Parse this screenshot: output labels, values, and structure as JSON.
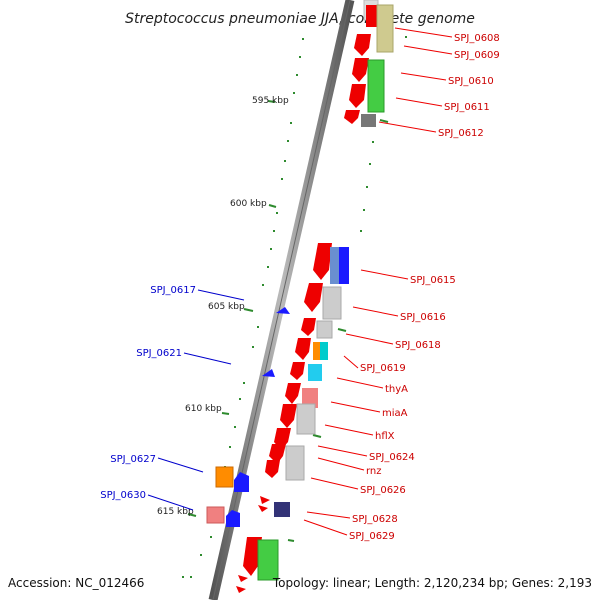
{
  "title": "Streptococcus pneumoniae JJA, complete genome",
  "accession": "Accession: NC_012466",
  "summary": "Topology: linear; Length: 2,120,234 bp; Genes: 2,193",
  "ticks": [
    "595 kbp",
    "600 kbp",
    "605 kbp",
    "610 kbp",
    "615 kbp"
  ],
  "right_genes": [
    "SPJ_0608",
    "SPJ_0609",
    "SPJ_0610",
    "SPJ_0611",
    "SPJ_0612",
    "SPJ_0615",
    "SPJ_0616",
    "SPJ_0618",
    "SPJ_0619",
    "thyA",
    "miaA",
    "hflX",
    "SPJ_0624",
    "rnz",
    "SPJ_0626",
    "SPJ_0628",
    "SPJ_0629"
  ],
  "left_genes": [
    "SPJ_0617",
    "SPJ_0621",
    "SPJ_0627",
    "SPJ_0630"
  ],
  "colors": {
    "forward": "#ee0000",
    "reverse": "#1a1aff",
    "right_label": "#cc0000",
    "left_label": "#0000cc",
    "tick": "#2e8b2e"
  }
}
